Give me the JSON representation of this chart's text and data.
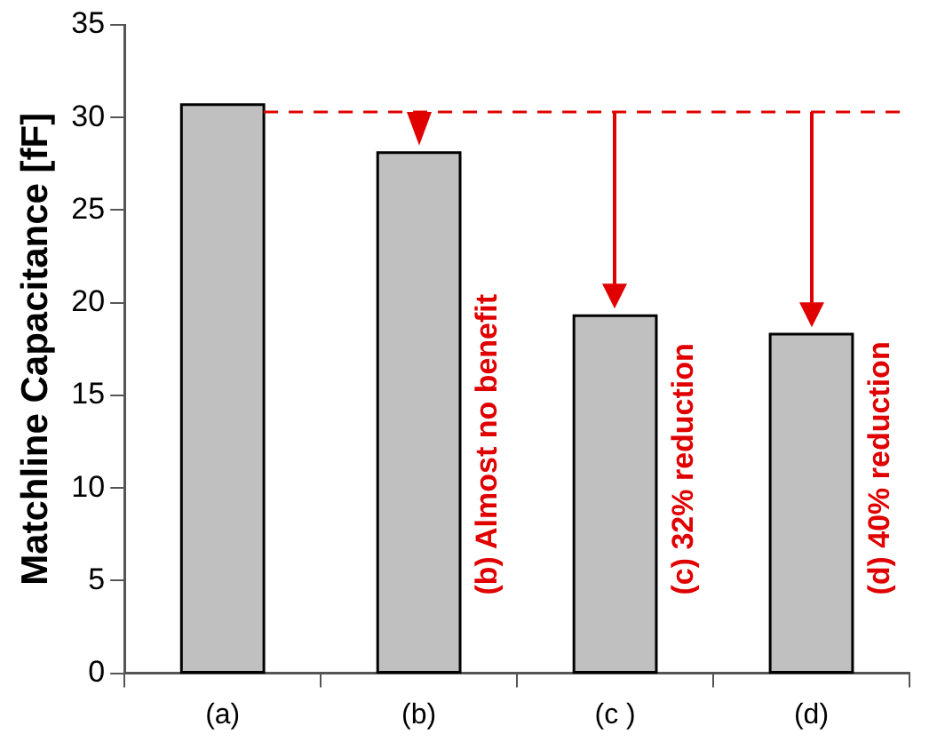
{
  "chart_data": {
    "type": "bar",
    "ylabel": "Matchline Capacitance [fF]",
    "categories": [
      "(a)",
      "(b)",
      "(c )",
      "(d)"
    ],
    "values": [
      30.7,
      28.1,
      19.3,
      18.3
    ],
    "color": "#c0c0c0",
    "ylim": [
      0,
      35
    ],
    "yticks": [
      0,
      5,
      10,
      15,
      20,
      25,
      30,
      35
    ],
    "grid": false,
    "legend": false,
    "ref_lines": [
      {
        "axis": "y",
        "value": 30.3,
        "color": "#e00000",
        "line_style": "dashed"
      }
    ],
    "annotations": [
      "(b) Almost no benefit",
      "(c) 32% reduction",
      "(d) 40% reduction"
    ]
  }
}
